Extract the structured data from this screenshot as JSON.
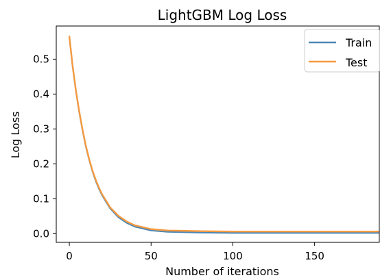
{
  "chart_data": {
    "type": "line",
    "title": "LightGBM Log Loss",
    "xlabel": "Number of iterations",
    "ylabel": "Log Loss",
    "xlim": [
      -8,
      190
    ],
    "ylim": [
      -0.025,
      0.595
    ],
    "xticks": [
      0,
      50,
      100,
      150
    ],
    "yticks": [
      0.0,
      0.1,
      0.2,
      0.3,
      0.4,
      0.5
    ],
    "xtick_labels": [
      "0",
      "50",
      "100",
      "150"
    ],
    "ytick_labels": [
      "0.0",
      "0.1",
      "0.2",
      "0.3",
      "0.4",
      "0.5"
    ],
    "grid": false,
    "legend_position": "top-right",
    "x": [
      0,
      2,
      4,
      6,
      8,
      10,
      12,
      14,
      16,
      18,
      20,
      25,
      30,
      35,
      40,
      50,
      60,
      80,
      100,
      120,
      150,
      189
    ],
    "series": [
      {
        "name": "Train",
        "color": "#4C88B5",
        "values": [
          0.565,
          0.48,
          0.41,
          0.35,
          0.298,
          0.252,
          0.214,
          0.181,
          0.153,
          0.13,
          0.11,
          0.072,
          0.047,
          0.031,
          0.02,
          0.009,
          0.005,
          0.003,
          0.002,
          0.002,
          0.002,
          0.002
        ]
      },
      {
        "name": "Test",
        "color": "#F59A40",
        "values": [
          0.565,
          0.481,
          0.411,
          0.352,
          0.3,
          0.254,
          0.216,
          0.183,
          0.156,
          0.133,
          0.113,
          0.075,
          0.051,
          0.035,
          0.024,
          0.013,
          0.009,
          0.007,
          0.006,
          0.006,
          0.006,
          0.006
        ]
      }
    ]
  }
}
